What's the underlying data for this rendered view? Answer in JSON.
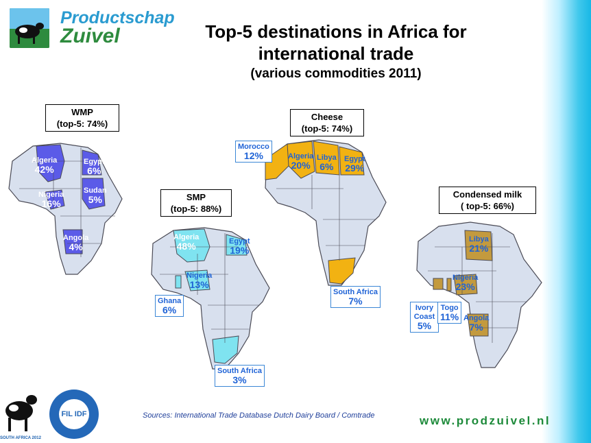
{
  "header": {
    "logo_line1": "Productschap",
    "logo_line2": "Zuivel",
    "title_line1": "Top-5 destinations in Africa for",
    "title_line2": "international trade",
    "title_line3": "(various commodities 2011)"
  },
  "maps": {
    "wmp": {
      "title": "WMP",
      "subtitle": "(top-5: 74%)",
      "highlight_color": "#5b5be8",
      "countries": [
        {
          "name": "Algeria",
          "share": "42%"
        },
        {
          "name": "Egypt",
          "share": "6%"
        },
        {
          "name": "Nigeria",
          "share": "16%"
        },
        {
          "name": "Sudan",
          "share": "5%"
        },
        {
          "name": "Angola",
          "share": "4%"
        }
      ]
    },
    "smp": {
      "title": "SMP",
      "subtitle": "(top-5: 88%)",
      "highlight_color": "#7fe3f0",
      "countries": [
        {
          "name": "Algeria",
          "share": "48%"
        },
        {
          "name": "Egypt",
          "share": "19%"
        },
        {
          "name": "Nigeria",
          "share": "13%"
        },
        {
          "name": "Ghana",
          "share": "6%"
        },
        {
          "name": "South Africa",
          "share": "3%"
        }
      ]
    },
    "cheese": {
      "title": "Cheese",
      "subtitle": "(top-5: 74%)",
      "highlight_color": "#f2b212",
      "countries": [
        {
          "name": "Morocco",
          "share": "12%"
        },
        {
          "name": "Algeria",
          "share": "20%"
        },
        {
          "name": "Libya",
          "share": "6%"
        },
        {
          "name": "Egypt",
          "share": "29%"
        },
        {
          "name": "South Africa",
          "share": "7%"
        }
      ]
    },
    "condensed": {
      "title": "Condensed milk",
      "subtitle": "( top-5: 66%)",
      "highlight_color": "#c39a3e",
      "countries": [
        {
          "name": "Libya",
          "share": "21%"
        },
        {
          "name": "Nigeria",
          "share": "23%"
        },
        {
          "name": "Ivory Coast",
          "share": "5%"
        },
        {
          "name": "Togo",
          "share": "11%"
        },
        {
          "name": "Angola",
          "share": "7%"
        }
      ]
    }
  },
  "footer": {
    "sources": "Sources: International Trade Database Dutch Dairy Board / Comtrade",
    "url": "www.prodzuivel.nl",
    "summit_text": "SOUTH AFRICA 2012",
    "fil_text": "FIL IDF"
  },
  "colors": {
    "base_country": "#d8e0ee",
    "border": "#4a4a55"
  }
}
